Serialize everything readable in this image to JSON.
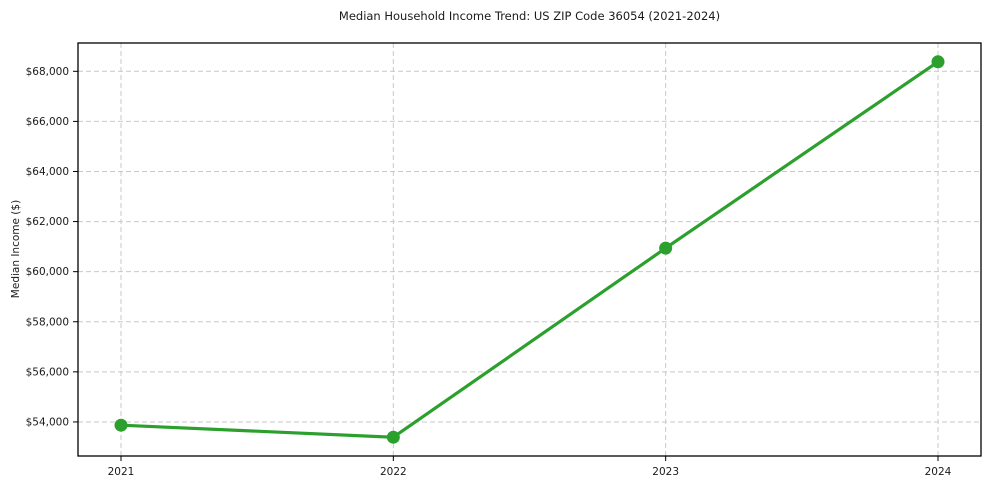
{
  "title": "Median Household Income Trend: US ZIP Code 36054 (2021-2024)",
  "chart_data": {
    "type": "line",
    "categories": [
      "2021",
      "2022",
      "2023",
      "2024"
    ],
    "values": [
      53870,
      53390,
      60940,
      68380
    ],
    "title": "Median Household Income Trend: US ZIP Code 36054 (2021-2024)",
    "xlabel": "",
    "ylabel": "Median Income ($)",
    "ylim": [
      52640,
      69130
    ],
    "yticks": [
      54000,
      56000,
      58000,
      60000,
      62000,
      64000,
      66000,
      68000
    ],
    "ytick_labels": [
      "$54,000",
      "$56,000",
      "$58,000",
      "$60,000",
      "$62,000",
      "$64,000",
      "$66,000",
      "$68,000"
    ],
    "grid": true,
    "grid_style": "dashed",
    "legend": false,
    "colors": {
      "line": "#2ca02c",
      "marker": "#2ca02c",
      "grid": "#c9c9c9",
      "spine": "#000000",
      "text": "#1a1a1a",
      "background": "#ffffff"
    }
  }
}
